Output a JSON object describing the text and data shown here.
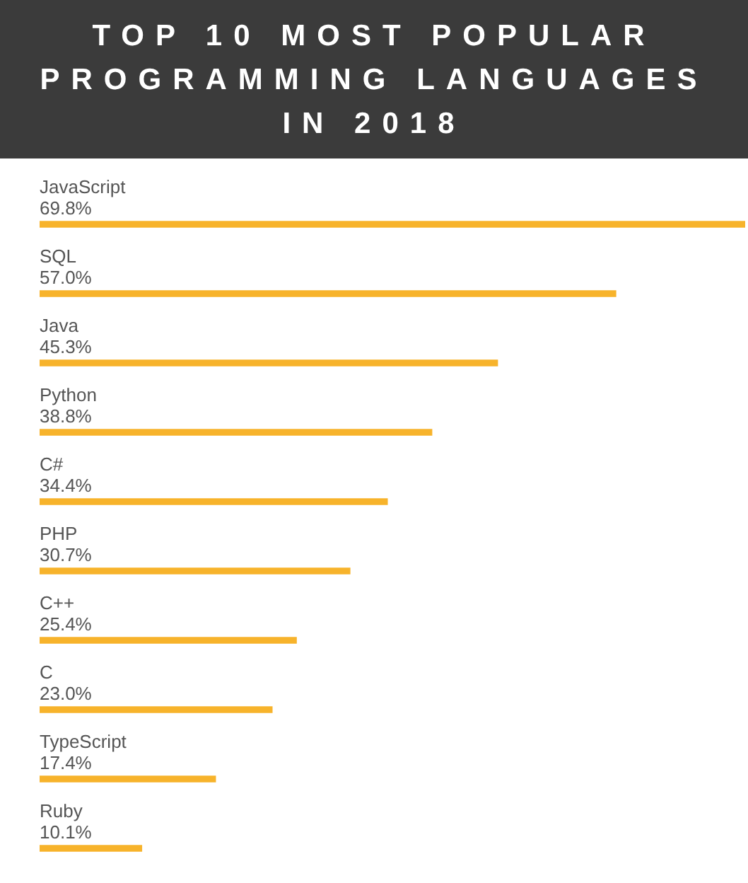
{
  "chart_data": {
    "type": "bar",
    "orientation": "horizontal",
    "title": "TOP 10 MOST POPULAR PROGRAMMING LANGUAGES IN 2018",
    "categories": [
      "JavaScript",
      "SQL",
      "Java",
      "Python",
      "C#",
      "PHP",
      "C++",
      "C",
      "TypeScript",
      "Ruby"
    ],
    "values": [
      69.8,
      57.0,
      45.3,
      38.8,
      34.4,
      30.7,
      25.4,
      23.0,
      17.4,
      10.1
    ],
    "value_labels": [
      "69.8%",
      "57.0%",
      "45.3%",
      "38.8%",
      "34.4%",
      "30.7%",
      "25.4%",
      "23.0%",
      "17.4%",
      "10.1%"
    ],
    "color": "#f7b32b",
    "tick_labels": false
  }
}
